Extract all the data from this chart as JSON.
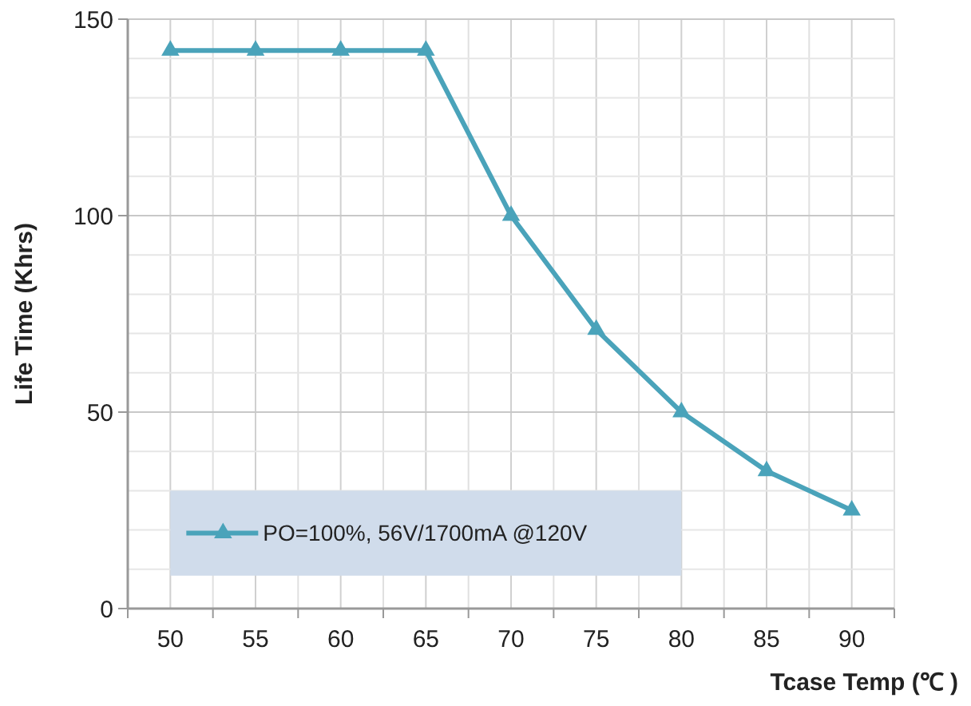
{
  "chart_data": {
    "type": "line",
    "xlabel": "Tcase Temp (℃ )",
    "ylabel": "Life Time (Khrs)",
    "categories": [
      "50",
      "55",
      "60",
      "65",
      "70",
      "75",
      "80",
      "85",
      "90"
    ],
    "series": [
      {
        "name": "PO=100%, 56V/1700mA @120V",
        "color": "#4aa3ba",
        "values": [
          142,
          142,
          142,
          142,
          100,
          71,
          50,
          35,
          25
        ]
      }
    ],
    "ylim": [
      0,
      150
    ],
    "yticks": [
      0,
      {
        "value": 10,
        "label": null
      },
      {
        "value": 20,
        "label": null
      },
      {
        "value": 30,
        "label": null
      },
      {
        "value": 40,
        "label": null
      },
      50,
      {
        "value": 60,
        "label": null
      },
      {
        "value": 70,
        "label": null
      },
      {
        "value": 80,
        "label": null
      },
      {
        "value": 90,
        "label": null
      },
      100,
      {
        "value": 110,
        "label": null
      },
      {
        "value": 120,
        "label": null
      },
      {
        "value": 130,
        "label": null
      },
      {
        "value": 140,
        "label": null
      },
      150
    ],
    "grid": true,
    "legend": "bottom left",
    "marker": "triangle",
    "line_style": "solid"
  }
}
